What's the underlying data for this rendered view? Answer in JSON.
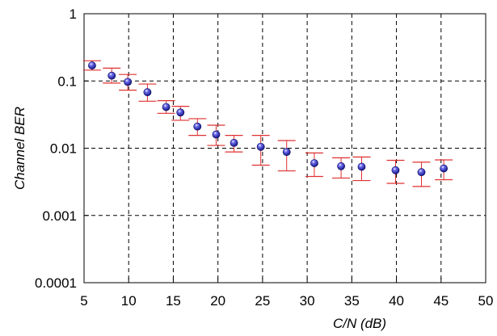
{
  "chart_data": {
    "type": "scatter",
    "title": "",
    "xlabel": "C/N (dB)",
    "ylabel": "Channel BER",
    "xlim": [
      5,
      50
    ],
    "ylim": [
      0.0001,
      1
    ],
    "yscale": "log",
    "grid": true,
    "grid_style": "dashed",
    "x_ticks": [
      5,
      10,
      15,
      20,
      25,
      30,
      35,
      40,
      45,
      50
    ],
    "x_tick_labels": [
      "5",
      "10",
      "15",
      "20",
      "25",
      "30",
      "35",
      "40",
      "45",
      "50"
    ],
    "y_ticks": [
      0.0001,
      0.001,
      0.01,
      0.1,
      1
    ],
    "y_tick_labels": [
      "0.0001",
      "0.001",
      "0.01",
      "0.1",
      "1"
    ],
    "series": [
      {
        "marker_color": "#1a1aa6",
        "errorbar_color": "#e03030",
        "points": [
          {
            "x": 5.9,
            "y": 0.17,
            "ylow": 0.145,
            "yhigh": 0.2
          },
          {
            "x": 8.1,
            "y": 0.12,
            "ylow": 0.093,
            "yhigh": 0.155
          },
          {
            "x": 9.9,
            "y": 0.097,
            "ylow": 0.073,
            "yhigh": 0.125
          },
          {
            "x": 12.1,
            "y": 0.068,
            "ylow": 0.05,
            "yhigh": 0.09
          },
          {
            "x": 14.2,
            "y": 0.041,
            "ylow": 0.033,
            "yhigh": 0.051
          },
          {
            "x": 15.8,
            "y": 0.034,
            "ylow": 0.026,
            "yhigh": 0.042
          },
          {
            "x": 17.7,
            "y": 0.021,
            "ylow": 0.0155,
            "yhigh": 0.0275
          },
          {
            "x": 19.8,
            "y": 0.016,
            "ylow": 0.011,
            "yhigh": 0.022
          },
          {
            "x": 21.8,
            "y": 0.012,
            "ylow": 0.0088,
            "yhigh": 0.0155
          },
          {
            "x": 24.8,
            "y": 0.0105,
            "ylow": 0.0056,
            "yhigh": 0.0155
          },
          {
            "x": 27.7,
            "y": 0.0088,
            "ylow": 0.0046,
            "yhigh": 0.013
          },
          {
            "x": 30.8,
            "y": 0.006,
            "ylow": 0.0038,
            "yhigh": 0.0085
          },
          {
            "x": 33.8,
            "y": 0.0054,
            "ylow": 0.0036,
            "yhigh": 0.0072
          },
          {
            "x": 36.1,
            "y": 0.0053,
            "ylow": 0.0033,
            "yhigh": 0.0074
          },
          {
            "x": 39.9,
            "y": 0.0047,
            "ylow": 0.003,
            "yhigh": 0.0066
          },
          {
            "x": 42.8,
            "y": 0.0044,
            "ylow": 0.0027,
            "yhigh": 0.0062
          },
          {
            "x": 45.3,
            "y": 0.005,
            "ylow": 0.0034,
            "yhigh": 0.0067
          }
        ]
      }
    ]
  }
}
